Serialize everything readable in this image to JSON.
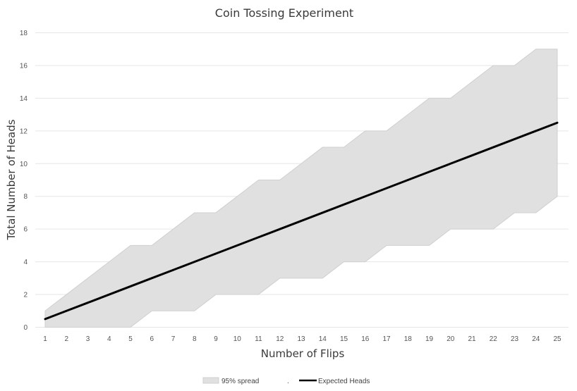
{
  "chart_data": {
    "type": "area",
    "title": "Coin Tossing Experiment",
    "xlabel": "Number of Flips",
    "ylabel": "Total Number of Heads",
    "ylim": [
      0,
      18
    ],
    "y_ticks": [
      0,
      2,
      4,
      6,
      8,
      10,
      12,
      14,
      16,
      18
    ],
    "grid": "horizontal",
    "legend_position": "bottom",
    "categories": [
      "1",
      "2",
      "3",
      "4",
      "5",
      "6",
      "7",
      "8",
      "9",
      "10",
      "11",
      "12",
      "13",
      "14",
      "15",
      "16",
      "17",
      "18",
      "19",
      "20",
      "21",
      "22",
      "23",
      "24",
      "25"
    ],
    "series": [
      {
        "name": "95% spread",
        "kind": "band",
        "color": "#e0e0e0",
        "edge_color": "#cfcfcf",
        "lower": [
          0,
          0,
          0,
          0,
          0,
          1,
          1,
          1,
          2,
          2,
          2,
          3,
          3,
          3,
          4,
          4,
          5,
          5,
          5,
          6,
          6,
          6,
          7,
          7,
          8
        ],
        "upper": [
          1,
          2,
          3,
          4,
          5,
          5,
          6,
          7,
          7,
          8,
          9,
          9,
          10,
          11,
          11,
          12,
          12,
          13,
          14,
          14,
          15,
          16,
          16,
          17,
          17
        ]
      },
      {
        "name": "Expected Heads",
        "kind": "line",
        "color": "#000000",
        "values": [
          0.5,
          1,
          1.5,
          2,
          2.5,
          3,
          3.5,
          4,
          4.5,
          5,
          5.5,
          6,
          6.5,
          7,
          7.5,
          8,
          8.5,
          9,
          9.5,
          10,
          10.5,
          11,
          11.5,
          12,
          12.5
        ]
      }
    ],
    "legend": [
      {
        "label": "95% spread",
        "marker": "band"
      },
      {
        "label": ".",
        "marker": "none"
      },
      {
        "label": "Expected Heads",
        "marker": "line"
      }
    ]
  }
}
